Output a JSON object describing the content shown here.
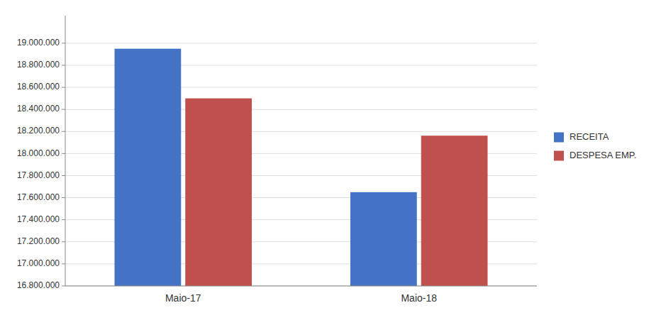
{
  "chart_data": {
    "type": "bar",
    "categories": [
      "Maio-17",
      "Maio-18"
    ],
    "series": [
      {
        "name": "RECEITA",
        "color": "#4472C4",
        "values": [
          18950000,
          17650000
        ]
      },
      {
        "name": "DESPESA EMP.",
        "color": "#C0504D",
        "values": [
          18500000,
          18162000
        ]
      }
    ],
    "ylim": [
      16800000,
      19250000
    ],
    "yticks": [
      {
        "value": 16800000,
        "label": "16.800.000"
      },
      {
        "value": 17000000,
        "label": "17.000.000"
      },
      {
        "value": 17200000,
        "label": "17.200.000"
      },
      {
        "value": 17400000,
        "label": "17.400.000"
      },
      {
        "value": 17600000,
        "label": "17.600.000"
      },
      {
        "value": 17800000,
        "label": "17.800.000"
      },
      {
        "value": 18000000,
        "label": "18.000.000"
      },
      {
        "value": 18200000,
        "label": "18.200.000"
      },
      {
        "value": 18400000,
        "label": "18.400.000"
      },
      {
        "value": 18600000,
        "label": "18.600.000"
      },
      {
        "value": 18800000,
        "label": "18.800.000"
      },
      {
        "value": 19000000,
        "label": "19.000.000"
      }
    ],
    "grid": true,
    "legend": "right"
  }
}
